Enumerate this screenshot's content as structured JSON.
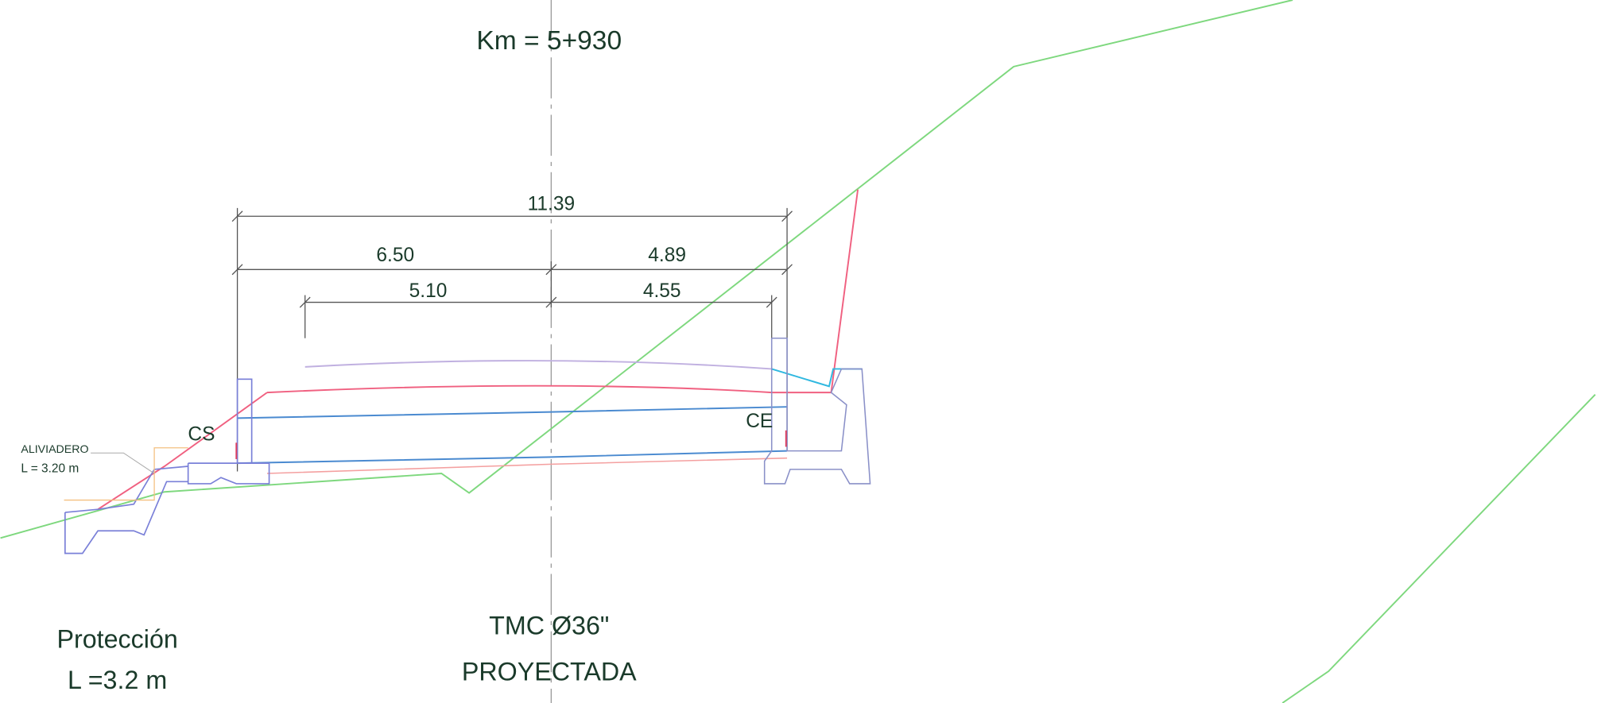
{
  "title": "Km = 5+930",
  "dimensions": [
    "11.39",
    "6.50",
    "4.89",
    "5.10",
    "4.55"
  ],
  "labels": {
    "left_point": "CS",
    "right_point": "CE",
    "spillway": "ALIVIADERO",
    "spillway_length": "L = 3.20 m"
  },
  "protection": {
    "title": "Protección",
    "length": "L =3.2 m"
  },
  "pipe": {
    "name": "TMC Ø36\"",
    "status": "PROYECTADA"
  }
}
